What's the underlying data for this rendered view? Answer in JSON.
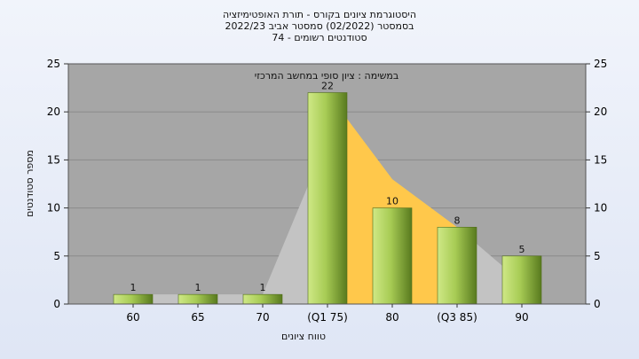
{
  "chart_data": {
    "type": "bar",
    "title_lines": [
      "היסטוגרמת ציונים בקורס - תורת האופטימיזציה",
      "בסמסטר  (02/2022)  סמסטר אביב 2022/23",
      "סטודנטים רשומים - 74"
    ],
    "annotation": "במשימה : ציון סופי במחשב המרכזי",
    "categories": [
      "60",
      "65",
      "70",
      "(Q1 75)",
      "80",
      "(Q3 85)",
      "90"
    ],
    "values": [
      1,
      1,
      1,
      22,
      10,
      8,
      5
    ],
    "data_labels": [
      "1",
      "1",
      "1",
      "22",
      "10",
      "8",
      "5"
    ],
    "xlabel": "טווח ציונים",
    "ylabel": "מספר סטודנטים",
    "ylim": [
      0,
      25
    ],
    "yticks": [
      0,
      5,
      10,
      15,
      20,
      25
    ],
    "grid": true,
    "colors": {
      "plot_bg": "#a6a6a6",
      "bar_light": "#d4ec8a",
      "bar_dark": "#5f7f22",
      "area_gray": "#c3c3c3",
      "area_orange": "#ffc84b"
    }
  }
}
